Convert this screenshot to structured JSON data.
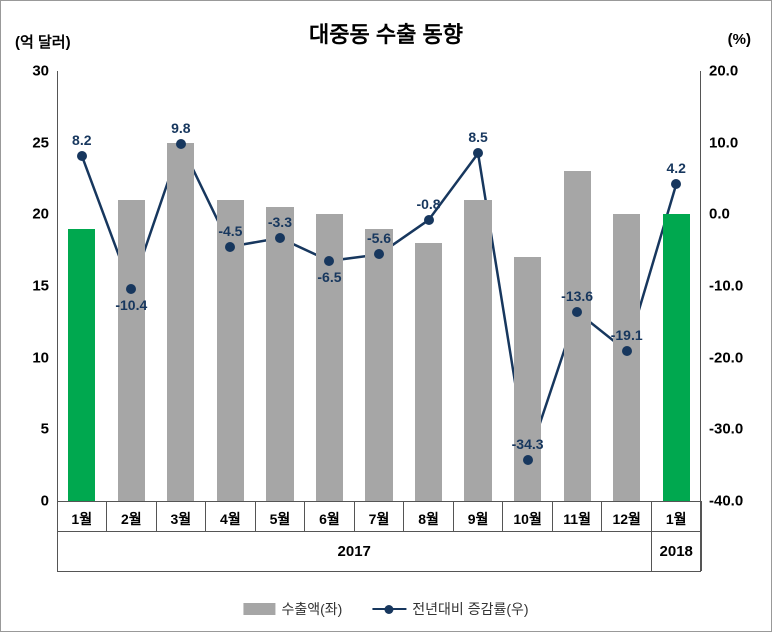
{
  "chart": {
    "title": "대중동 수출 동향",
    "ylabel_left": "(억 달러)",
    "ylabel_right": "(%)",
    "type": "bar+line",
    "background": "#ffffff",
    "axis_color": "#555555",
    "left_axis": {
      "min": 0,
      "max": 30,
      "step": 5
    },
    "right_axis": {
      "min": -40,
      "max": 20,
      "step": 10
    },
    "categories": [
      "1월",
      "2월",
      "3월",
      "4월",
      "5월",
      "6월",
      "7월",
      "8월",
      "9월",
      "10월",
      "11월",
      "12월",
      "1월"
    ],
    "year_groups": [
      {
        "label": "2017",
        "start": 0,
        "end": 11
      },
      {
        "label": "2018",
        "start": 12,
        "end": 12
      }
    ],
    "bars": {
      "values": [
        19,
        21,
        25,
        21,
        20.5,
        20,
        19,
        18,
        21,
        17,
        23,
        20,
        20
      ],
      "colors": [
        "#00a84f",
        "#a6a6a6",
        "#a6a6a6",
        "#a6a6a6",
        "#a6a6a6",
        "#a6a6a6",
        "#a6a6a6",
        "#a6a6a6",
        "#a6a6a6",
        "#a6a6a6",
        "#a6a6a6",
        "#a6a6a6",
        "#00a84f"
      ],
      "width_frac": 0.55,
      "legend": "수출액(좌)"
    },
    "line": {
      "values": [
        8.2,
        -10.4,
        9.8,
        -4.5,
        -3.3,
        -6.5,
        -5.6,
        -0.8,
        8.5,
        -34.3,
        -13.6,
        -19.1,
        4.2
      ],
      "labels": [
        "8.2",
        "-10.4",
        "9.8",
        "-4.5",
        "-3.3",
        "-6.5",
        "-5.6",
        "-0.8",
        "8.5",
        "-34.3",
        "-13.6",
        "-19.1",
        "4.2"
      ],
      "label_positions": [
        "above",
        "below",
        "above",
        "above",
        "above",
        "below",
        "above",
        "above",
        "above",
        "above",
        "above",
        "above",
        "above"
      ],
      "color": "#17375e",
      "width": 2.5,
      "marker_size": 10,
      "legend": "전년대비 증감률(우)"
    }
  }
}
